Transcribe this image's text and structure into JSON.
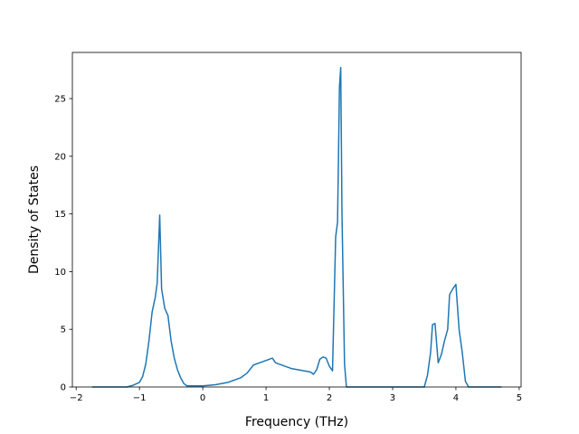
{
  "chart_data": {
    "type": "line",
    "x_label": "Frequency (THz)",
    "y_label": "Density of States",
    "x": [
      -1.75,
      -1.2,
      -1.1,
      -1.0,
      -0.95,
      -0.9,
      -0.85,
      -0.8,
      -0.75,
      -0.72,
      -0.68,
      -0.65,
      -0.6,
      -0.55,
      -0.5,
      -0.45,
      -0.4,
      -0.35,
      -0.3,
      -0.25,
      0,
      0.2,
      0.4,
      0.6,
      0.7,
      0.8,
      0.9,
      1.0,
      1.1,
      1.15,
      1.3,
      1.4,
      1.5,
      1.6,
      1.7,
      1.75,
      1.8,
      1.85,
      1.9,
      1.95,
      2.0,
      2.05,
      2.1,
      2.13,
      2.16,
      2.18,
      2.2,
      2.24,
      2.27,
      3.5,
      3.55,
      3.6,
      3.63,
      3.67,
      3.72,
      3.77,
      3.82,
      3.87,
      3.9,
      3.95,
      4.0,
      4.05,
      4.1,
      4.15,
      4.2,
      4.72
    ],
    "values": [
      0,
      0,
      0.15,
      0.4,
      0.9,
      2,
      4,
      6.5,
      7.8,
      9,
      14.9,
      8.5,
      6.8,
      6.2,
      4,
      2.5,
      1.5,
      0.8,
      0.3,
      0.1,
      0.1,
      0.2,
      0.4,
      0.8,
      1.2,
      1.9,
      2.1,
      2.3,
      2.5,
      2.1,
      1.8,
      1.6,
      1.5,
      1.4,
      1.3,
      1.1,
      1.5,
      2.4,
      2.6,
      2.5,
      1.8,
      1.4,
      13,
      14.3,
      26,
      27.7,
      15,
      2,
      0,
      0,
      1,
      3,
      5.4,
      5.5,
      2.1,
      2.8,
      4,
      5,
      8,
      8.5,
      8.9,
      5,
      3,
      0.5,
      0,
      0
    ],
    "color": "#1f77b4",
    "xlim": [
      -2.06,
      5.03
    ],
    "xticks": [
      {
        "value": -2,
        "label": "−2"
      },
      {
        "value": -1,
        "label": "−1"
      },
      0,
      1,
      2,
      3,
      4,
      5
    ],
    "ylim": [
      0,
      29.0
    ],
    "yticks": [
      0,
      5,
      10,
      15,
      20,
      25
    ]
  }
}
